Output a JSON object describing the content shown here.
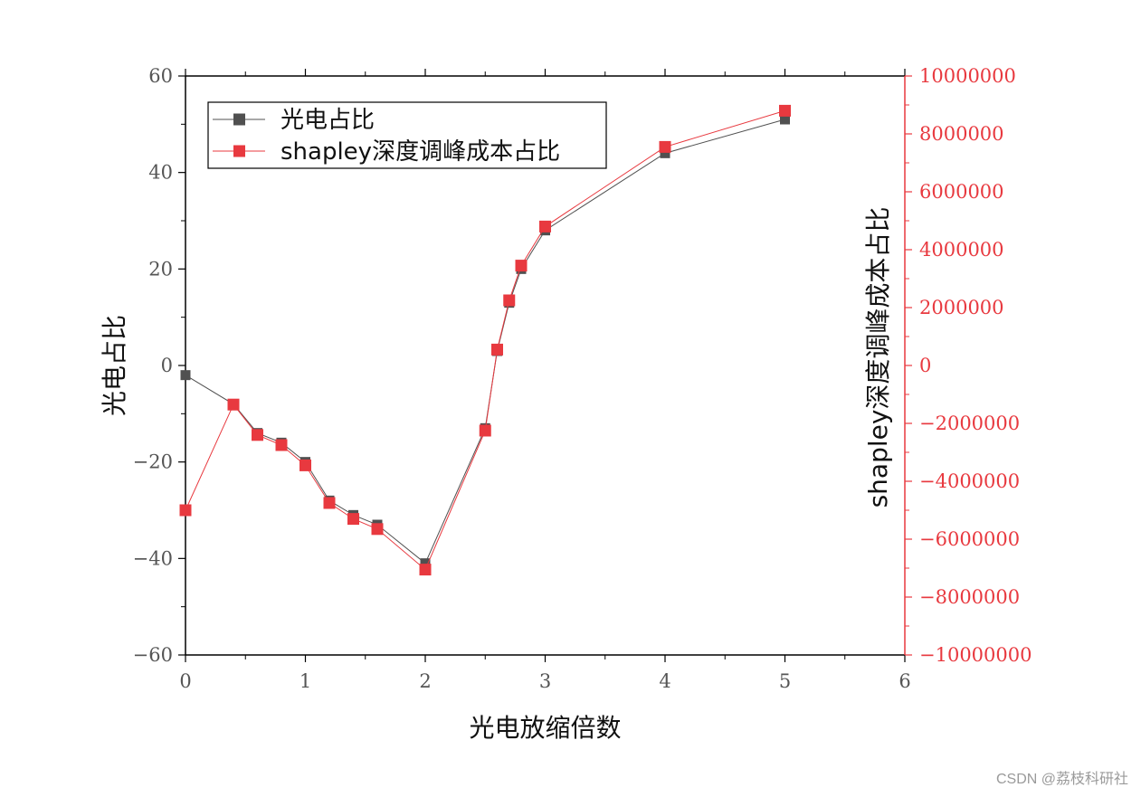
{
  "colors": {
    "series1": "#505050",
    "series2": "#e8393f",
    "left_axis": "#000000",
    "right_axis": "#e8393f",
    "left_tick_text": "#555555",
    "right_tick_text": "#e8393f"
  },
  "watermark": "CSDN @荔枝科研社",
  "chart_data": {
    "type": "line",
    "xlabel": "光电放缩倍数",
    "ylabel": "光电占比",
    "y2label": "shapley深度调峰成本占比",
    "xlim": [
      0,
      6
    ],
    "ylim": [
      -60,
      60
    ],
    "y2lim": [
      -10000000,
      10000000
    ],
    "xticks": [
      0,
      1,
      2,
      3,
      4,
      5,
      6
    ],
    "yticks": [
      60,
      40,
      20,
      0,
      -20,
      -40,
      -60
    ],
    "y2ticks": [
      10000000,
      8000000,
      6000000,
      4000000,
      2000000,
      0,
      -2000000,
      -4000000,
      -6000000,
      -8000000,
      -10000000
    ],
    "xtick_labels": [
      "0",
      "1",
      "2",
      "3",
      "4",
      "5",
      "6"
    ],
    "ytick_labels": [
      "60",
      "40",
      "20",
      "0",
      "−20",
      "−40",
      "−60"
    ],
    "y2tick_labels": [
      "10000000",
      "8000000",
      "6000000",
      "4000000",
      "2000000",
      "0",
      "−2000000",
      "−4000000",
      "−6000000",
      "−8000000",
      "−10000000"
    ],
    "legend_position": "top-left",
    "series": [
      {
        "name": "光电占比",
        "axis": "left",
        "marker": "square",
        "x": [
          0,
          0.4,
          0.6,
          0.8,
          1.0,
          1.2,
          1.4,
          1.6,
          2.0,
          2.5,
          2.6,
          2.7,
          2.8,
          3.0,
          4.0,
          5.0
        ],
        "values": [
          -2,
          -8,
          -14,
          -16,
          -20,
          -28,
          -31,
          -33,
          -41,
          -13,
          3,
          13,
          20,
          28,
          44,
          51
        ]
      },
      {
        "name": "shapley深度调峰成本占比",
        "axis": "right",
        "marker": "square",
        "x": [
          0,
          0.4,
          0.6,
          0.8,
          1.0,
          1.2,
          1.4,
          1.6,
          2.0,
          2.5,
          2.6,
          2.7,
          2.8,
          3.0,
          4.0,
          5.0
        ],
        "values": [
          -5000000,
          -1350000,
          -2400000,
          -2750000,
          -3450000,
          -4750000,
          -5300000,
          -5650000,
          -7050000,
          -2250000,
          550000,
          2250000,
          3450000,
          4800000,
          7550000,
          8800000
        ]
      }
    ]
  }
}
